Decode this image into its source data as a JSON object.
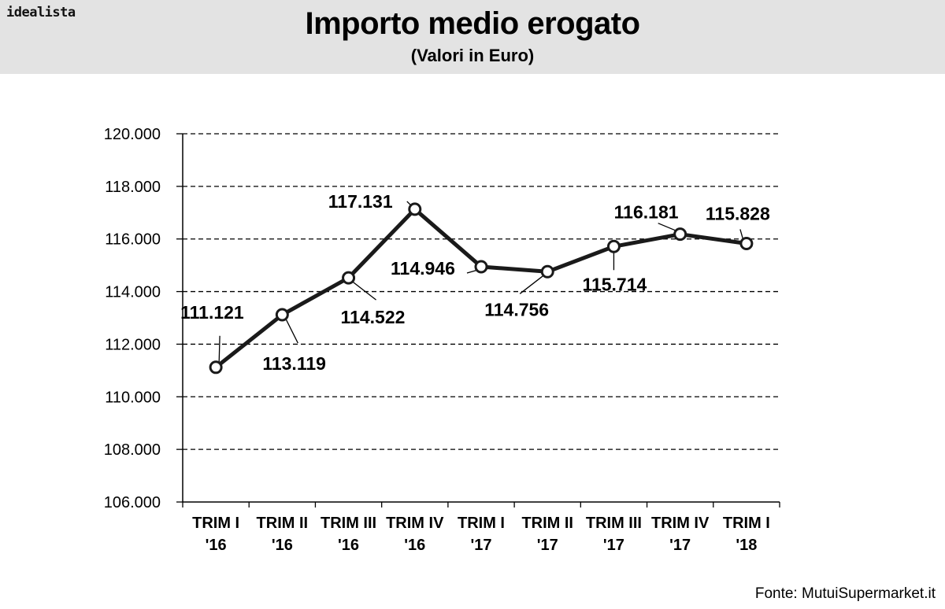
{
  "header": {
    "logo": "idealista",
    "title": "Importo medio erogato",
    "subtitle": "(Valori in Euro)"
  },
  "source": "Fonte: MutuiSupermarket.it",
  "colors": {
    "header_bg": "#e3e3e3",
    "line": "#1a1a1a",
    "marker_fill": "#ffffff",
    "grid": "#000000"
  },
  "chart_data": {
    "type": "line",
    "categories": [
      [
        "TRIM I",
        "'16"
      ],
      [
        "TRIM II",
        "'16"
      ],
      [
        "TRIM III",
        "'16"
      ],
      [
        "TRIM IV",
        "'16"
      ],
      [
        "TRIM I",
        "'17"
      ],
      [
        "TRIM II",
        "'17"
      ],
      [
        "TRIM III",
        "'17"
      ],
      [
        "TRIM IV",
        "'17"
      ],
      [
        "TRIM I",
        "'18"
      ]
    ],
    "values": [
      111121,
      113119,
      114522,
      117131,
      114946,
      114756,
      115714,
      116181,
      115828
    ],
    "data_labels": [
      "111.121",
      "113.119",
      "114.522",
      "117.131",
      "114.946",
      "114.756",
      "115.714",
      "116.181",
      "115.828"
    ],
    "ylim": [
      106000,
      120000
    ],
    "yticks": [
      106000,
      108000,
      110000,
      112000,
      114000,
      116000,
      118000,
      120000
    ],
    "ytick_labels": [
      "106.000",
      "108.000",
      "110.000",
      "112.000",
      "114.000",
      "116.000",
      "118.000",
      "120.000"
    ],
    "grid": "horizontal dashed",
    "legend": "none"
  }
}
